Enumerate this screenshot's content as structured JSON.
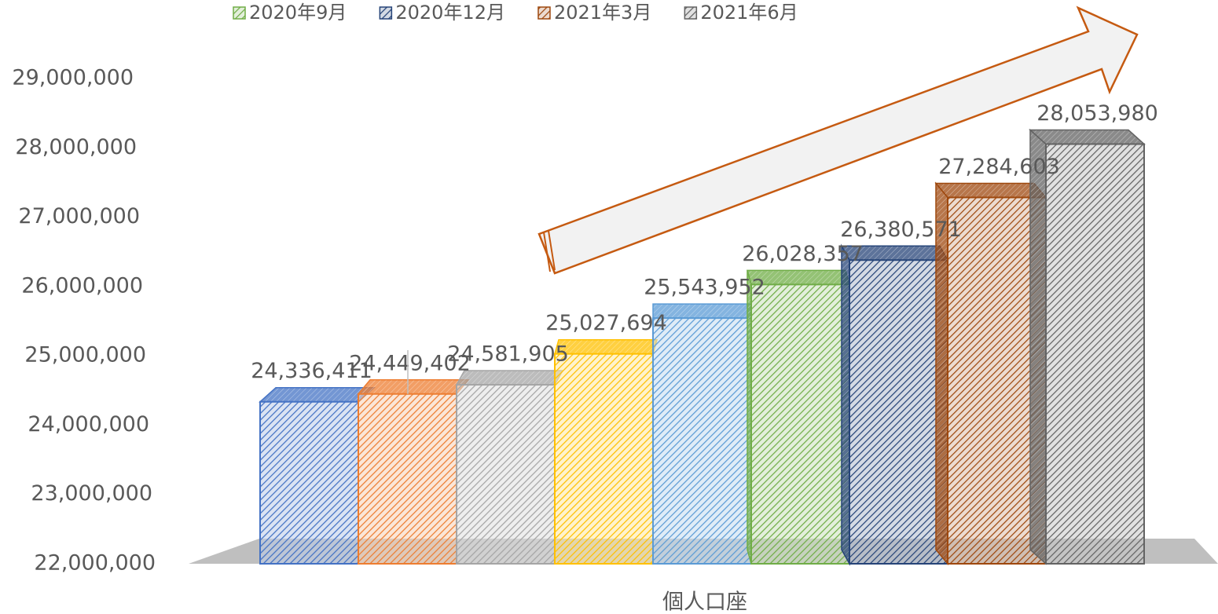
{
  "chart_data": {
    "type": "bar",
    "categories": [
      "個人口座"
    ],
    "series": [
      {
        "name": null,
        "color": "#4472c4",
        "values": [
          24336411
        ],
        "value_labels": [
          "24,336,411"
        ]
      },
      {
        "name": null,
        "color": "#ed7d31",
        "values": [
          24449402
        ],
        "value_labels": [
          "24,449,402"
        ]
      },
      {
        "name": null,
        "color": "#a5a5a5",
        "values": [
          24581905
        ],
        "value_labels": [
          "24,581,905"
        ]
      },
      {
        "name": null,
        "color": "#ffc000",
        "values": [
          25027694
        ],
        "value_labels": [
          "25,027,694"
        ]
      },
      {
        "name": null,
        "color": "#5b9bd5",
        "values": [
          25543952
        ],
        "value_labels": [
          "25,543,952"
        ]
      },
      {
        "name": "2020年9月",
        "color": "#70ad47",
        "values": [
          26028357
        ],
        "value_labels": [
          "26,028,357"
        ]
      },
      {
        "name": "2020年12月",
        "color": "#264478",
        "values": [
          26380571
        ],
        "value_labels": [
          "26,380,571"
        ]
      },
      {
        "name": "2021年3月",
        "color": "#9e480e",
        "values": [
          27284603
        ],
        "value_labels": [
          "27,284,603"
        ]
      },
      {
        "name": "2021年6月",
        "color": "#636363",
        "values": [
          28053980
        ],
        "value_labels": [
          "28,053,980"
        ]
      }
    ],
    "ylim": [
      22000000,
      29000000
    ],
    "yticks": [
      {
        "value": 22000000,
        "label": "22,000,000"
      },
      {
        "value": 23000000,
        "label": "23,000,000"
      },
      {
        "value": 24000000,
        "label": "24,000,000"
      },
      {
        "value": 25000000,
        "label": "25,000,000"
      },
      {
        "value": 26000000,
        "label": "26,000,000"
      },
      {
        "value": 27000000,
        "label": "27,000,000"
      },
      {
        "value": 28000000,
        "label": "28,000,000"
      },
      {
        "value": 29000000,
        "label": "29,000,000"
      }
    ],
    "grid": false,
    "legend": "top"
  }
}
